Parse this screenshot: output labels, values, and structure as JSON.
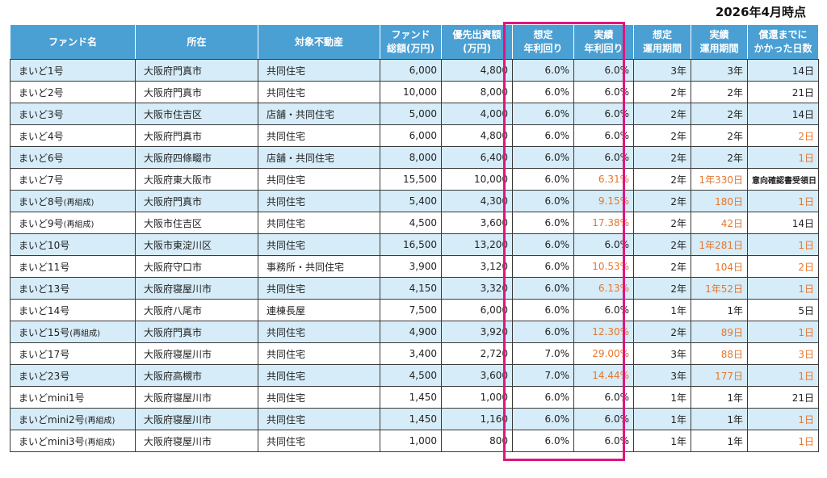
{
  "as_of": "2026年4月時点",
  "headers": [
    "ファンド名",
    "所在",
    "対象不動産",
    "ファンド\n総額(万円)",
    "優先出資額\n(万円)",
    "想定\n年利回り",
    "実績\n年利回り",
    "想定\n運用期間",
    "実績\n運用期間",
    "償還までに\nかかった日数"
  ],
  "rows": [
    {
      "name": "まいど1号",
      "suffix": "",
      "location": "大阪府門真市",
      "property": "共同住宅",
      "total": "6,000",
      "preferred": "4,800",
      "exp_yield": "6.0%",
      "act_yield": "6.0%",
      "act_yield_hi": false,
      "exp_period": "3年",
      "act_period": "3年",
      "act_period_hi": false,
      "days": "14日",
      "days_hi": false,
      "days_small": false
    },
    {
      "name": "まいど2号",
      "suffix": "",
      "location": "大阪府門真市",
      "property": "共同住宅",
      "total": "10,000",
      "preferred": "8,000",
      "exp_yield": "6.0%",
      "act_yield": "6.0%",
      "act_yield_hi": false,
      "exp_period": "2年",
      "act_period": "2年",
      "act_period_hi": false,
      "days": "21日",
      "days_hi": false,
      "days_small": false
    },
    {
      "name": "まいど3号",
      "suffix": "",
      "location": "大阪市住吉区",
      "property": "店舗・共同住宅",
      "total": "5,000",
      "preferred": "4,000",
      "exp_yield": "6.0%",
      "act_yield": "6.0%",
      "act_yield_hi": false,
      "exp_period": "2年",
      "act_period": "2年",
      "act_period_hi": false,
      "days": "14日",
      "days_hi": false,
      "days_small": false
    },
    {
      "name": "まいど4号",
      "suffix": "",
      "location": "大阪府門真市",
      "property": "共同住宅",
      "total": "6,000",
      "preferred": "4,800",
      "exp_yield": "6.0%",
      "act_yield": "6.0%",
      "act_yield_hi": false,
      "exp_period": "2年",
      "act_period": "2年",
      "act_period_hi": false,
      "days": "2日",
      "days_hi": true,
      "days_small": false
    },
    {
      "name": "まいど6号",
      "suffix": "",
      "location": "大阪府四條畷市",
      "property": "店舗・共同住宅",
      "total": "8,000",
      "preferred": "6,400",
      "exp_yield": "6.0%",
      "act_yield": "6.0%",
      "act_yield_hi": false,
      "exp_period": "2年",
      "act_period": "2年",
      "act_period_hi": false,
      "days": "1日",
      "days_hi": true,
      "days_small": false
    },
    {
      "name": "まいど7号",
      "suffix": "",
      "location": "大阪府東大阪市",
      "property": "共同住宅",
      "total": "15,500",
      "preferred": "10,000",
      "exp_yield": "6.0%",
      "act_yield": "6.31%",
      "act_yield_hi": true,
      "exp_period": "2年",
      "act_period": "1年330日",
      "act_period_hi": true,
      "days": "意向確認書受領日",
      "days_hi": false,
      "days_small": true
    },
    {
      "name": "まいど8号",
      "suffix": "(再組成)",
      "location": "大阪府門真市",
      "property": "共同住宅",
      "total": "5,400",
      "preferred": "4,300",
      "exp_yield": "6.0%",
      "act_yield": "9.15%",
      "act_yield_hi": true,
      "exp_period": "2年",
      "act_period": "180日",
      "act_period_hi": true,
      "days": "1日",
      "days_hi": true,
      "days_small": false
    },
    {
      "name": "まいど9号",
      "suffix": "(再組成)",
      "location": "大阪市住吉区",
      "property": "共同住宅",
      "total": "4,500",
      "preferred": "3,600",
      "exp_yield": "6.0%",
      "act_yield": "17.38%",
      "act_yield_hi": true,
      "exp_period": "2年",
      "act_period": "42日",
      "act_period_hi": true,
      "days": "14日",
      "days_hi": false,
      "days_small": false
    },
    {
      "name": "まいど10号",
      "suffix": "",
      "location": "大阪市東淀川区",
      "property": "共同住宅",
      "total": "16,500",
      "preferred": "13,200",
      "exp_yield": "6.0%",
      "act_yield": "6.0%",
      "act_yield_hi": false,
      "exp_period": "2年",
      "act_period": "1年281日",
      "act_period_hi": true,
      "days": "1日",
      "days_hi": true,
      "days_small": false
    },
    {
      "name": "まいど11号",
      "suffix": "",
      "location": "大阪府守口市",
      "property": "事務所・共同住宅",
      "total": "3,900",
      "preferred": "3,120",
      "exp_yield": "6.0%",
      "act_yield": "10.53%",
      "act_yield_hi": true,
      "exp_period": "2年",
      "act_period": "104日",
      "act_period_hi": true,
      "days": "2日",
      "days_hi": true,
      "days_small": false
    },
    {
      "name": "まいど13号",
      "suffix": "",
      "location": "大阪府寝屋川市",
      "property": "共同住宅",
      "total": "4,150",
      "preferred": "3,320",
      "exp_yield": "6.0%",
      "act_yield": "6.13%",
      "act_yield_hi": true,
      "exp_period": "2年",
      "act_period": "1年52日",
      "act_period_hi": true,
      "days": "1日",
      "days_hi": true,
      "days_small": false
    },
    {
      "name": "まいど14号",
      "suffix": "",
      "location": "大阪府八尾市",
      "property": "連棟長屋",
      "total": "7,500",
      "preferred": "6,000",
      "exp_yield": "6.0%",
      "act_yield": "6.0%",
      "act_yield_hi": false,
      "exp_period": "1年",
      "act_period": "1年",
      "act_period_hi": false,
      "days": "5日",
      "days_hi": false,
      "days_small": false
    },
    {
      "name": "まいど15号",
      "suffix": "(再組成)",
      "location": "大阪府門真市",
      "property": "共同住宅",
      "total": "4,900",
      "preferred": "3,920",
      "exp_yield": "6.0%",
      "act_yield": "12.30%",
      "act_yield_hi": true,
      "exp_period": "2年",
      "act_period": "89日",
      "act_period_hi": true,
      "days": "1日",
      "days_hi": true,
      "days_small": false
    },
    {
      "name": "まいど17号",
      "suffix": "",
      "location": "大阪府寝屋川市",
      "property": "共同住宅",
      "total": "3,400",
      "preferred": "2,720",
      "exp_yield": "7.0%",
      "act_yield": "29.00%",
      "act_yield_hi": true,
      "exp_period": "3年",
      "act_period": "88日",
      "act_period_hi": true,
      "days": "3日",
      "days_hi": true,
      "days_small": false
    },
    {
      "name": "まいど23号",
      "suffix": "",
      "location": "大阪府高槻市",
      "property": "共同住宅",
      "total": "4,500",
      "preferred": "3,600",
      "exp_yield": "7.0%",
      "act_yield": "14.44%",
      "act_yield_hi": true,
      "exp_period": "3年",
      "act_period": "177日",
      "act_period_hi": true,
      "days": "1日",
      "days_hi": true,
      "days_small": false
    },
    {
      "name": "まいどmini1号",
      "suffix": "",
      "location": "大阪府寝屋川市",
      "property": "共同住宅",
      "total": "1,450",
      "preferred": "1,000",
      "exp_yield": "6.0%",
      "act_yield": "6.0%",
      "act_yield_hi": false,
      "exp_period": "1年",
      "act_period": "1年",
      "act_period_hi": false,
      "days": "21日",
      "days_hi": false,
      "days_small": false
    },
    {
      "name": "まいどmini2号",
      "suffix": "(再組成)",
      "location": "大阪府寝屋川市",
      "property": "共同住宅",
      "total": "1,450",
      "preferred": "1,160",
      "exp_yield": "6.0%",
      "act_yield": "6.0%",
      "act_yield_hi": false,
      "exp_period": "1年",
      "act_period": "1年",
      "act_period_hi": false,
      "days": "1日",
      "days_hi": true,
      "days_small": false
    },
    {
      "name": "まいどmini3号",
      "suffix": "(再組成)",
      "location": "大阪府寝屋川市",
      "property": "共同住宅",
      "total": "1,000",
      "preferred": "800",
      "exp_yield": "6.0%",
      "act_yield": "6.0%",
      "act_yield_hi": false,
      "exp_period": "1年",
      "act_period": "1年",
      "act_period_hi": false,
      "days": "1日",
      "days_hi": true,
      "days_small": false
    }
  ],
  "colors": {
    "header_bg": "#4a9fd3",
    "row_stripe": "#d6ecf8",
    "highlight_border": "#e0157e",
    "accent_orange": "#e8762b"
  }
}
